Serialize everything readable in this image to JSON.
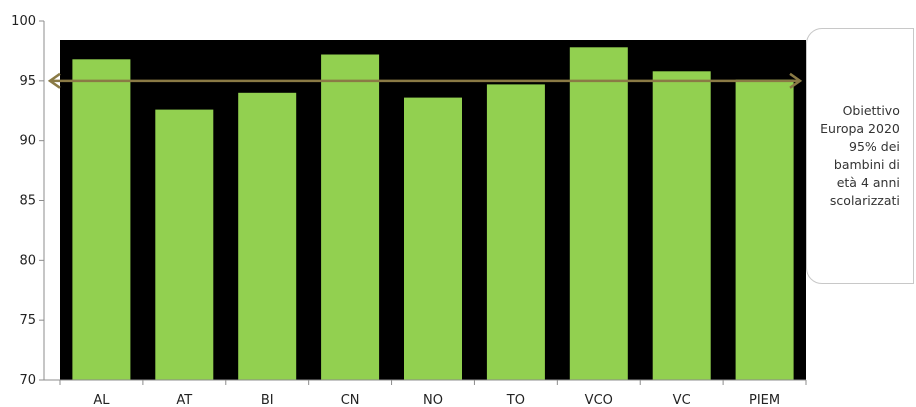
{
  "chart_data": {
    "type": "bar",
    "categories": [
      "AL",
      "AT",
      "BI",
      "CN",
      "NO",
      "TO",
      "VCO",
      "VC",
      "PIEM"
    ],
    "values": [
      96.8,
      92.6,
      94.0,
      97.2,
      93.6,
      94.7,
      97.8,
      95.8,
      95.1
    ],
    "ylim": [
      70,
      100
    ],
    "yticks": [
      70,
      75,
      80,
      85,
      90,
      95,
      100
    ],
    "target_line": 95,
    "grid": false,
    "colors": {
      "bar": "#92d050",
      "plot_bg": "#000000",
      "target_line": "#8a7a45"
    }
  },
  "annotation": {
    "lines": [
      "Obiettivo",
      "Europa 2020",
      "95% dei",
      "bambini di",
      "età 4 anni",
      "scolarizzati"
    ]
  }
}
